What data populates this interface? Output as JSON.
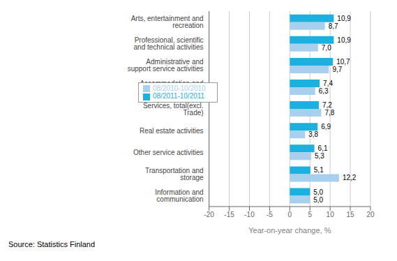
{
  "chart_data": {
    "type": "bar",
    "orientation": "horizontal",
    "xlabel": "Year-on-year change, %",
    "annotations": [
      "Source: Statistics Finland"
    ],
    "categories": [
      "Arts, entertainment and recreation",
      "Professional, scientific and technical activities",
      "Administrative and support service activities",
      "Accommodation and foodservice activities",
      "Services, total(excl. Trade)",
      "Real estate activities",
      "Other service activities",
      "Transportation and storage",
      "Information and communication"
    ],
    "series": [
      {
        "name": "08/2011-10/2011",
        "color": "#1ab0e0",
        "values": [
          10.9,
          10.9,
          10.7,
          7.4,
          7.2,
          6.9,
          6.1,
          5.1,
          5.0
        ],
        "value_labels": [
          "10,9",
          "10,9",
          "10,7",
          "7,4",
          "7,2",
          "6,9",
          "6,1",
          "5,1",
          "5,0"
        ]
      },
      {
        "name": "08/2010-10/2010",
        "color": "#a8d0ee",
        "values": [
          8.7,
          7.0,
          9.7,
          6.3,
          7.8,
          3.8,
          5.3,
          12.2,
          5.0
        ],
        "value_labels": [
          "8,7",
          "7,0",
          "9,7",
          "6,3",
          "7,8",
          "3,8",
          "5,3",
          "12,2",
          "5,0"
        ]
      }
    ],
    "xlim": [
      -20,
      20
    ],
    "xticks": [
      -20,
      -15,
      -10,
      -5,
      0,
      5,
      10,
      15,
      20
    ],
    "grid": true,
    "legend": "left",
    "data_labels": true
  }
}
